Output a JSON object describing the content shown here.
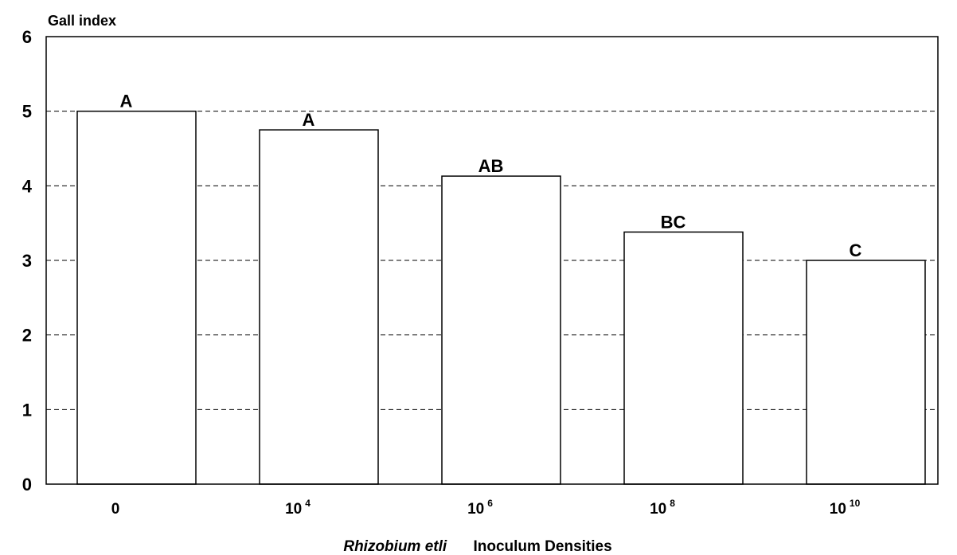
{
  "chart_data": {
    "type": "bar",
    "ylabel": "Gall index",
    "xlabel_italic": "Rhizobium etli",
    "xlabel": "Inoculum Densities",
    "ylim": [
      0,
      6
    ],
    "yticks": [
      "0",
      "1",
      "2",
      "3",
      "4",
      "5",
      "6"
    ],
    "grid": "horizontal dashed",
    "categories": [
      {
        "base": "0",
        "exp": ""
      },
      {
        "base": "10",
        "exp": "4"
      },
      {
        "base": "10",
        "exp": "6"
      },
      {
        "base": "10",
        "exp": "8"
      },
      {
        "base": "10",
        "exp": "10"
      }
    ],
    "values": [
      5.0,
      4.75,
      4.13,
      3.38,
      3.0
    ],
    "group_labels": [
      "A",
      "A",
      "AB",
      "BC",
      "C"
    ],
    "bar_fill": "#ffffff",
    "bar_stroke": "#000000"
  }
}
